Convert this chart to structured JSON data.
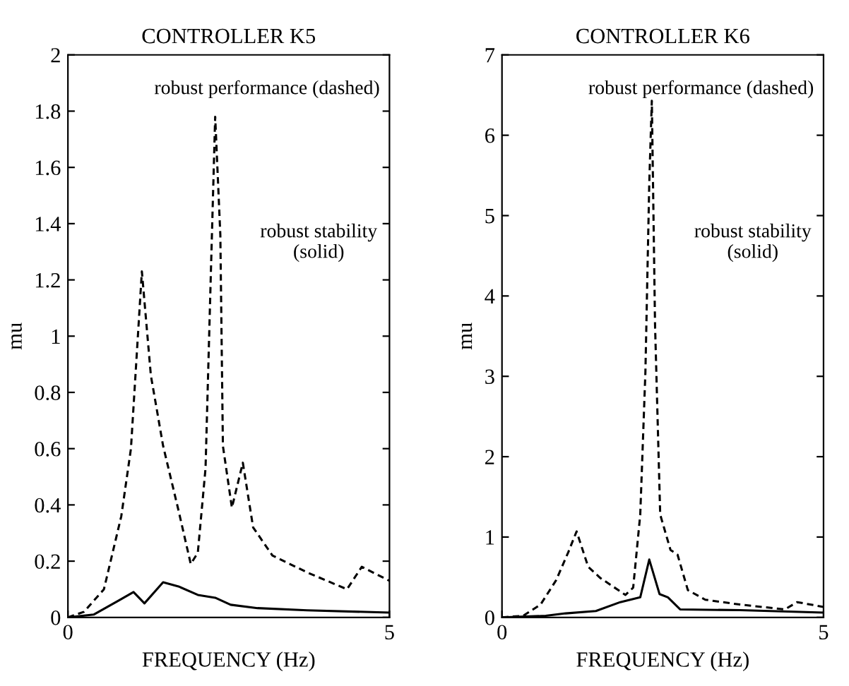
{
  "chart_data": [
    {
      "type": "line",
      "title": "CONTROLLER K5",
      "xlabel": "FREQUENCY (Hz)",
      "ylabel": "mu",
      "xlim": [
        0,
        5
      ],
      "xticks": [
        0,
        5
      ],
      "ylim": [
        0,
        2
      ],
      "yticks": [
        0,
        0.2,
        0.4,
        0.6,
        0.8,
        1,
        1.2,
        1.4,
        1.6,
        1.8,
        2
      ],
      "grid": false,
      "legend": false,
      "annotations": [
        "robust performance (dashed)",
        "robust stability\n(solid)"
      ],
      "series": [
        {
          "color": "#000000",
          "line_style": "dashed",
          "x": [
            0,
            0.25,
            0.56,
            0.83,
            0.98,
            1.15,
            1.29,
            1.48,
            1.72,
            1.91,
            2.02,
            2.14,
            2.22,
            2.29,
            2.37,
            2.41,
            2.55,
            2.72,
            2.88,
            3.18,
            3.72,
            4.34,
            4.57,
            5
          ],
          "values": [
            0,
            0.02,
            0.1,
            0.36,
            0.6,
            1.23,
            0.86,
            0.61,
            0.38,
            0.19,
            0.23,
            0.53,
            1.2,
            1.78,
            1.36,
            0.61,
            0.39,
            0.55,
            0.32,
            0.22,
            0.16,
            0.1,
            0.18,
            0.13
          ]
        },
        {
          "color": "#000000",
          "line_style": "solid",
          "x": [
            0,
            0.4,
            0.79,
            1.02,
            1.19,
            1.48,
            1.72,
            2.02,
            2.29,
            2.53,
            2.95,
            3.72,
            5
          ],
          "values": [
            0,
            0.01,
            0.06,
            0.09,
            0.05,
            0.125,
            0.11,
            0.08,
            0.07,
            0.045,
            0.033,
            0.025,
            0.017
          ]
        }
      ]
    },
    {
      "type": "line",
      "title": "CONTROLLER K6",
      "xlabel": "FREQUENCY (Hz)",
      "ylabel": "mu",
      "xlim": [
        0,
        5
      ],
      "xticks": [
        0,
        5
      ],
      "ylim": [
        0,
        7
      ],
      "yticks": [
        0,
        1,
        2,
        3,
        4,
        5,
        6,
        7
      ],
      "grid": false,
      "legend": false,
      "annotations": [
        "robust performance (dashed)",
        "robust stability\n(solid)"
      ],
      "series": [
        {
          "color": "#000000",
          "line_style": "dashed",
          "x": [
            0,
            0.33,
            0.6,
            0.84,
            1.03,
            1.16,
            1.34,
            1.53,
            1.92,
            2.04,
            2.15,
            2.23,
            2.29,
            2.33,
            2.38,
            2.46,
            2.62,
            2.73,
            2.89,
            3.16,
            3.7,
            4.4,
            4.59,
            5
          ],
          "values": [
            0,
            0.02,
            0.16,
            0.46,
            0.81,
            1.07,
            0.63,
            0.49,
            0.28,
            0.37,
            1.28,
            3.05,
            5.4,
            6.43,
            3.64,
            1.28,
            0.84,
            0.78,
            0.34,
            0.22,
            0.16,
            0.1,
            0.19,
            0.13
          ]
        },
        {
          "color": "#000000",
          "line_style": "solid",
          "x": [
            0,
            0.68,
            0.99,
            1.46,
            1.84,
            2.15,
            2.29,
            2.45,
            2.58,
            2.77,
            3.7,
            5
          ],
          "values": [
            0,
            0.02,
            0.05,
            0.08,
            0.19,
            0.25,
            0.72,
            0.29,
            0.25,
            0.1,
            0.09,
            0.06
          ]
        }
      ]
    }
  ]
}
